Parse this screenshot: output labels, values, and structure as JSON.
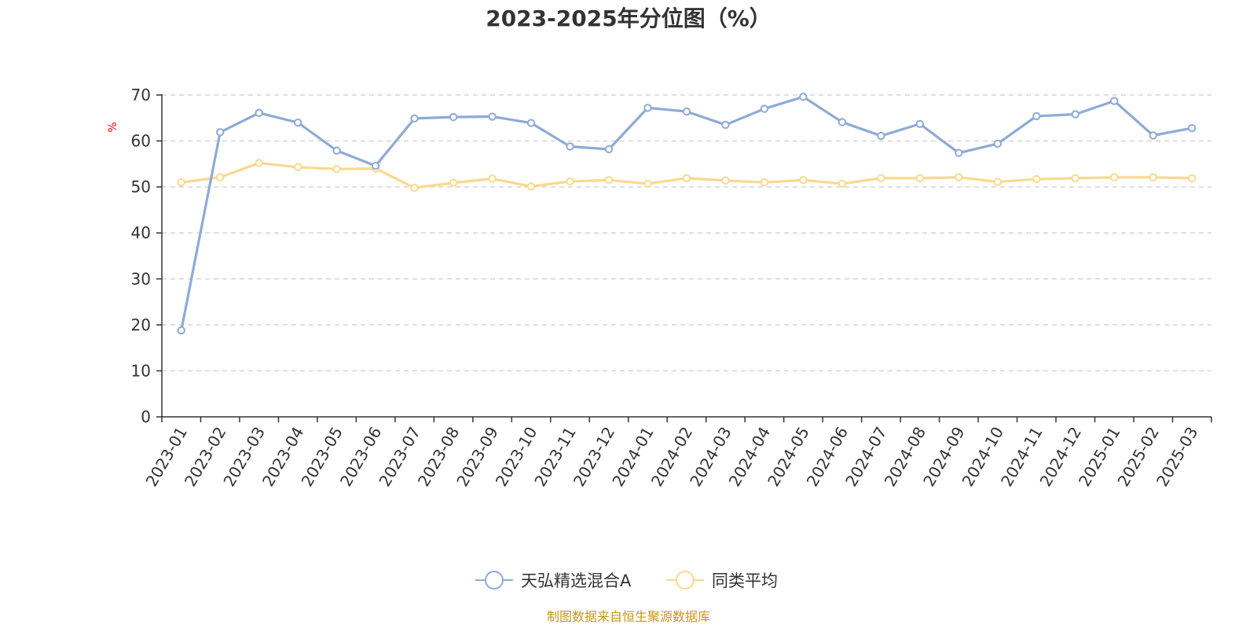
{
  "chart_data": {
    "type": "line",
    "title": "2023-2025年分位图（%）",
    "ylabel": "%",
    "ylim": [
      0,
      70
    ],
    "yticks": [
      0,
      10,
      20,
      30,
      40,
      50,
      60,
      70
    ],
    "grid": true,
    "legend_position": "bottom-center",
    "categories": [
      "2023-01",
      "2023-02",
      "2023-03",
      "2023-04",
      "2023-05",
      "2023-06",
      "2023-07",
      "2023-08",
      "2023-09",
      "2023-10",
      "2023-11",
      "2023-12",
      "2024-01",
      "2024-02",
      "2024-03",
      "2024-04",
      "2024-05",
      "2024-06",
      "2024-07",
      "2024-08",
      "2024-09",
      "2024-10",
      "2024-11",
      "2024-12",
      "2025-01",
      "2025-02",
      "2025-03"
    ],
    "series": [
      {
        "name": "天弘精选混合A",
        "color": "#8eaad6",
        "values": [
          18.8,
          61.9,
          66.1,
          64.0,
          57.9,
          54.6,
          64.9,
          65.2,
          65.3,
          63.9,
          58.8,
          58.2,
          67.2,
          66.4,
          63.5,
          67.0,
          69.6,
          64.1,
          61.1,
          63.7,
          57.4,
          59.4,
          65.4,
          65.8,
          68.7,
          61.2,
          62.8
        ]
      },
      {
        "name": "同类平均",
        "color": "#fad98e",
        "values": [
          51.0,
          52.1,
          55.2,
          54.3,
          53.9,
          54.0,
          49.8,
          50.9,
          51.8,
          50.1,
          51.2,
          51.5,
          50.7,
          51.9,
          51.4,
          51.0,
          51.5,
          50.7,
          51.9,
          51.9,
          52.1,
          51.1,
          51.7,
          51.9,
          52.1,
          52.1,
          51.9
        ]
      }
    ]
  },
  "source_text": "制图数据来自恒生聚源数据库",
  "colors": {
    "ylabel": "#ff0000",
    "source": "#c8961e",
    "axis": "#333333"
  }
}
